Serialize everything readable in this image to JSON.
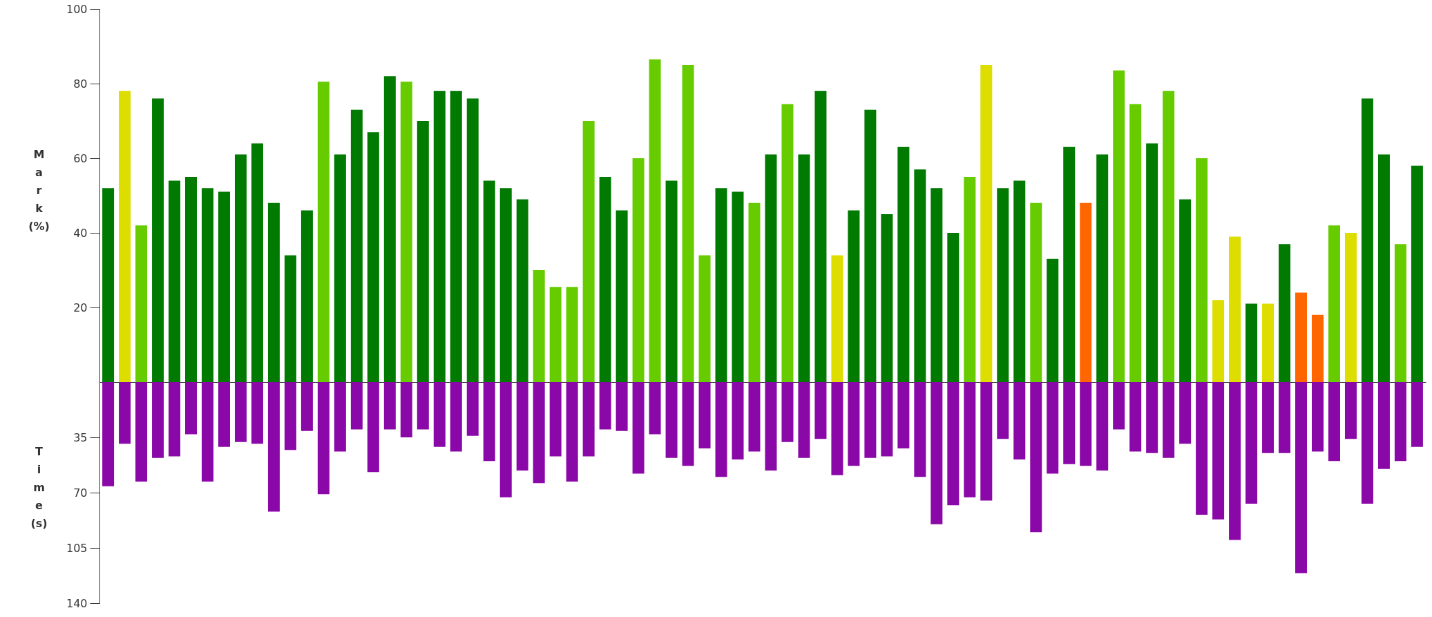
{
  "chart_data": [
    {
      "type": "bar",
      "ylabel": "Mark (%)",
      "categories": [
        null,
        null,
        null,
        null,
        null,
        null,
        null,
        null,
        null,
        null,
        null,
        null,
        null,
        null,
        null,
        null,
        null,
        null,
        null,
        null,
        null,
        null,
        null,
        null,
        null,
        null,
        null,
        null,
        null,
        null,
        null,
        null,
        null,
        null,
        null,
        null,
        null,
        null,
        null,
        null,
        null,
        null,
        null,
        null,
        null,
        null,
        null,
        null,
        null,
        null,
        null,
        null,
        null,
        null,
        null,
        null,
        null,
        null,
        null,
        null,
        null,
        null,
        null,
        null,
        null,
        null,
        null,
        null,
        null,
        null,
        null,
        null,
        null,
        null,
        null,
        null,
        null,
        null,
        null,
        null
      ],
      "values": [
        52,
        78,
        42,
        76,
        54,
        55,
        52,
        51,
        61,
        64,
        48,
        34,
        46,
        80.5,
        61,
        73,
        67,
        82,
        80.5,
        70,
        78,
        78,
        76,
        54,
        52,
        49,
        30,
        25.5,
        25.5,
        70,
        55,
        46,
        60,
        86.5,
        54,
        85,
        34,
        52,
        51,
        48,
        61,
        74.5,
        61,
        78,
        34,
        46,
        73,
        45,
        63,
        57,
        52,
        40,
        55,
        85,
        52,
        54,
        48,
        33,
        63,
        48,
        61,
        83.5,
        74.5,
        64,
        78,
        49,
        60,
        22,
        39,
        21,
        21,
        37,
        24,
        18,
        42,
        40,
        76,
        61,
        37,
        58
      ],
      "colors": [
        "#007a00",
        "#dddd00",
        "#66cc00",
        "#007a00",
        "#007a00",
        "#007a00",
        "#007a00",
        "#007a00",
        "#007a00",
        "#007a00",
        "#007a00",
        "#007a00",
        "#007a00",
        "#66cc00",
        "#007a00",
        "#007a00",
        "#007a00",
        "#007a00",
        "#66cc00",
        "#007a00",
        "#007a00",
        "#007a00",
        "#007a00",
        "#007a00",
        "#007a00",
        "#007a00",
        "#66cc00",
        "#66cc00",
        "#66cc00",
        "#66cc00",
        "#007a00",
        "#007a00",
        "#66cc00",
        "#66cc00",
        "#007a00",
        "#66cc00",
        "#66cc00",
        "#007a00",
        "#007a00",
        "#66cc00",
        "#007a00",
        "#66cc00",
        "#007a00",
        "#007a00",
        "#dddd00",
        "#007a00",
        "#007a00",
        "#007a00",
        "#007a00",
        "#007a00",
        "#007a00",
        "#007a00",
        "#66cc00",
        "#dddd00",
        "#007a00",
        "#007a00",
        "#66cc00",
        "#007a00",
        "#007a00",
        "#ff6600",
        "#007a00",
        "#66cc00",
        "#66cc00",
        "#007a00",
        "#66cc00",
        "#007a00",
        "#66cc00",
        "#dddd00",
        "#dddd00",
        "#007a00",
        "#dddd00",
        "#007a00",
        "#ff6600",
        "#ff6600",
        "#66cc00",
        "#dddd00",
        "#007a00",
        "#007a00",
        "#66cc00",
        "#007a00"
      ],
      "ylim": [
        0,
        100
      ],
      "yticks": [
        20,
        40,
        60,
        80,
        100
      ],
      "grid": false,
      "tick_labels": "y"
    },
    {
      "type": "bar",
      "ylabel": "Time (s)",
      "categories": [
        null,
        null,
        null,
        null,
        null,
        null,
        null,
        null,
        null,
        null,
        null,
        null,
        null,
        null,
        null,
        null,
        null,
        null,
        null,
        null,
        null,
        null,
        null,
        null,
        null,
        null,
        null,
        null,
        null,
        null,
        null,
        null,
        null,
        null,
        null,
        null,
        null,
        null,
        null,
        null,
        null,
        null,
        null,
        null,
        null,
        null,
        null,
        null,
        null,
        null,
        null,
        null,
        null,
        null,
        null,
        null,
        null,
        null,
        null,
        null,
        null,
        null,
        null,
        null,
        null,
        null,
        null,
        null,
        null,
        null,
        null,
        null,
        null,
        null,
        null,
        null,
        null,
        null,
        null,
        null
      ],
      "series": [
        {
          "color": "#8b08a8",
          "values": [
            66,
            39,
            63,
            48,
            47,
            33,
            63,
            41,
            38,
            39,
            82,
            43,
            31,
            71,
            44,
            30,
            57,
            30,
            35,
            30,
            41,
            44,
            34,
            50,
            73,
            56,
            64,
            47,
            63,
            47,
            30,
            31,
            58,
            33,
            48,
            53,
            42,
            60,
            49,
            44,
            56,
            38,
            48,
            36,
            59,
            53,
            48,
            47,
            42,
            60,
            90,
            78,
            73,
            75,
            36,
            49,
            95,
            58,
            52,
            53,
            56,
            30,
            44,
            45,
            48,
            39,
            84,
            87,
            100,
            77,
            45,
            45,
            121,
            44,
            50,
            36,
            77,
            55,
            50,
            41
          ]
        }
      ],
      "ylim": [
        140,
        0
      ],
      "yticks": [
        35,
        70,
        105,
        140
      ],
      "grid": false,
      "tick_labels": "y"
    }
  ]
}
